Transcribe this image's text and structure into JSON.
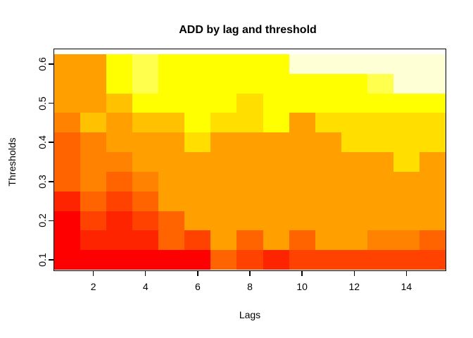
{
  "chart_data": {
    "type": "heatmap",
    "title": "ADD by lag and threshold",
    "xlabel": "Lags",
    "ylabel": "Thresholds",
    "x_axis": {
      "ticks": [
        2,
        4,
        6,
        8,
        10,
        12,
        14
      ],
      "range": [
        1,
        15
      ]
    },
    "y_axis": {
      "ticks": [
        "0.1",
        "0.2",
        "0.3",
        "0.4",
        "0.5",
        "0.6"
      ],
      "range": [
        0.1,
        0.6
      ]
    },
    "lags": [
      1,
      2,
      3,
      4,
      5,
      6,
      7,
      8,
      9,
      10,
      11,
      12,
      13,
      14,
      15
    ],
    "thresholds_top_to_bottom": [
      0.6,
      0.55,
      0.5,
      0.45,
      0.4,
      0.35,
      0.3,
      0.25,
      0.2,
      0.15,
      0.1
    ],
    "palette_name": "heat-colors-12",
    "palette": {
      "1": "#FF0000",
      "2": "#FF2400",
      "3": "#FF4200",
      "4": "#FF6400",
      "5": "#FF8300",
      "6": "#FFA000",
      "7": "#FFC100",
      "8": "#FFDE00",
      "9": "#FFFF00",
      "10": "#FFFF4D",
      "11": "#FFFF95",
      "12": "#FFFFD5"
    },
    "rows": [
      {
        "threshold": 0.6,
        "levels": [
          6,
          6,
          9,
          10,
          9,
          9,
          9,
          9,
          9,
          12,
          12,
          12,
          12,
          12,
          12
        ]
      },
      {
        "threshold": 0.55,
        "levels": [
          6,
          6,
          9,
          10,
          9,
          9,
          9,
          9,
          9,
          9,
          9,
          9,
          10,
          12,
          12
        ]
      },
      {
        "threshold": 0.5,
        "levels": [
          6,
          6,
          7,
          9,
          9,
          9,
          9,
          8,
          9,
          9,
          9,
          9,
          9,
          9,
          9
        ]
      },
      {
        "threshold": 0.45,
        "levels": [
          5,
          7,
          6,
          7,
          7,
          9,
          8,
          8,
          9,
          6,
          8,
          8,
          8,
          8,
          8
        ]
      },
      {
        "threshold": 0.4,
        "levels": [
          4,
          5,
          6,
          6,
          6,
          8,
          6,
          6,
          6,
          6,
          6,
          8,
          8,
          8,
          8
        ]
      },
      {
        "threshold": 0.35,
        "levels": [
          4,
          5,
          5,
          6,
          6,
          6,
          6,
          6,
          6,
          6,
          6,
          6,
          6,
          8,
          6
        ]
      },
      {
        "threshold": 0.3,
        "levels": [
          4,
          5,
          4,
          5,
          6,
          6,
          6,
          6,
          6,
          6,
          6,
          6,
          6,
          6,
          6
        ]
      },
      {
        "threshold": 0.25,
        "levels": [
          2,
          4,
          3,
          4,
          6,
          6,
          6,
          6,
          6,
          6,
          6,
          6,
          6,
          6,
          6
        ]
      },
      {
        "threshold": 0.2,
        "levels": [
          1,
          3,
          2,
          3,
          4,
          6,
          6,
          6,
          6,
          6,
          6,
          6,
          6,
          6,
          6
        ]
      },
      {
        "threshold": 0.15,
        "levels": [
          1,
          2,
          2,
          2,
          4,
          3,
          6,
          4,
          6,
          4,
          6,
          6,
          5,
          5,
          4
        ]
      },
      {
        "threshold": 0.1,
        "levels": [
          1,
          1,
          1,
          1,
          1,
          1,
          4,
          3,
          2,
          3,
          3,
          3,
          3,
          3,
          3
        ]
      }
    ],
    "layout": {
      "grid_on": false,
      "legend": "none",
      "background": "#FFFFFF",
      "text_color": "#000000"
    }
  }
}
